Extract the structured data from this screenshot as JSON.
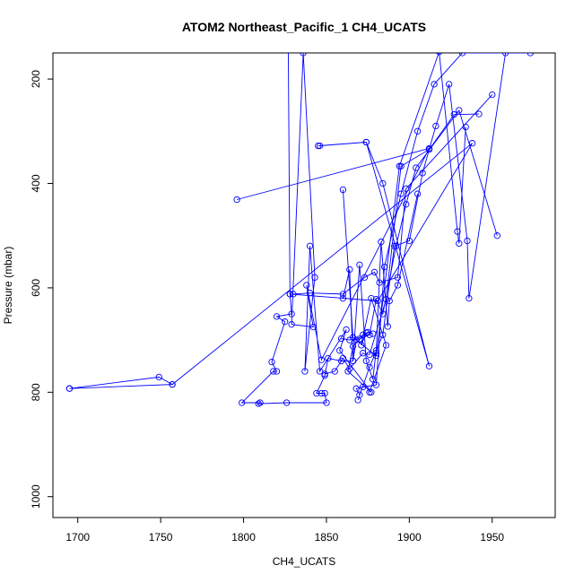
{
  "chart_data": {
    "type": "line",
    "title": "ATOM2 Northeast_Pacific_1 CH4_UCATS",
    "xlabel": "CH4_UCATS",
    "ylabel": "Pressure (mbar)",
    "xlim": [
      1685,
      1988
    ],
    "ylim": [
      1040,
      150
    ],
    "y_reversed": true,
    "x_ticks": [
      1700,
      1750,
      1800,
      1850,
      1900,
      1950
    ],
    "y_ticks": [
      200,
      400,
      600,
      800,
      1000
    ],
    "grid": false,
    "legend": "none",
    "marker": "open-circle",
    "line_color": "#0000ff",
    "series": [
      {
        "x": [
          1695,
          1749,
          1757,
          1695
        ],
        "y": [
          793,
          771,
          785,
          793
        ]
      },
      {
        "x": [
          1757,
          1938,
          1881,
          1828,
          1829,
          1820,
          1825,
          1817,
          1820,
          1818,
          1799,
          1810,
          1809,
          1826,
          1850,
          1849,
          1847,
          1844,
          1849,
          1851,
          1859,
          1866,
          1868,
          1872,
          1875,
          1878
        ],
        "y": [
          785,
          323,
          625,
          612,
          650,
          655,
          665,
          742,
          760,
          760,
          820,
          820,
          822,
          820,
          820,
          802,
          802,
          802,
          768,
          735,
          740,
          740,
          700,
          690,
          685,
          688
        ]
      },
      {
        "x": [
          1796,
          1912,
          1847,
          1838,
          1842,
          1829,
          1836,
          1843,
          1837,
          1840,
          1846,
          1862,
          1858,
          1877,
          1863,
          1866,
          1874,
          1871,
          1877,
          1886,
          1876
        ],
        "y": [
          431,
          333,
          738,
          595,
          675,
          670,
          150,
          580,
          760,
          520,
          760,
          680,
          720,
          800,
          760,
          712,
          686,
          710,
          620,
          710,
          800
        ]
      },
      {
        "x": [
          1827,
          1828,
          1830,
          1840,
          1860,
          1873,
          1879,
          1882,
          1893,
          1898,
          1950
        ],
        "y": [
          135,
          612,
          612,
          610,
          612,
          580,
          570,
          590,
          580,
          410,
          230
        ]
      },
      {
        "x": [
          1845,
          1874,
          1912,
          1884,
          1874,
          1846
        ],
        "y": [
          328,
          321,
          750,
          400,
          321,
          328
        ]
      },
      {
        "x": [
          1860,
          1866,
          1880,
          1894,
          1918,
          1929,
          1930,
          1934
        ],
        "y": [
          412,
          695,
          730,
          367,
          148,
          492,
          515,
          292
        ]
      },
      {
        "x": [
          1860,
          1864,
          1866,
          1870,
          1874,
          1878,
          1880,
          1880,
          1883,
          1887,
          1888,
          1893,
          1905
        ],
        "y": [
          620,
          565,
          740,
          556,
          740,
          775,
          720,
          725,
          512,
          674,
          625,
          595,
          420
        ]
      },
      {
        "x": [
          1859,
          1864,
          1870,
          1876,
          1880,
          1884,
          1892,
          1898,
          1904,
          1930,
          1953
        ],
        "y": [
          697,
          700,
          698,
          690,
          622,
          650,
          520,
          440,
          370,
          260,
          500
        ]
      },
      {
        "x": [
          1849,
          1855,
          1860,
          1864,
          1872,
          1876,
          1886,
          1895,
          1912,
          1927,
          1942
        ],
        "y": [
          765,
          760,
          735,
          755,
          725,
          728,
          622,
          367,
          335,
          268,
          267
        ]
      },
      {
        "x": [
          1869,
          1876,
          1884,
          1891,
          1900,
          1908,
          1916,
          1924,
          1935,
          1936,
          1958
        ],
        "y": [
          815,
          752,
          690,
          520,
          510,
          380,
          290,
          210,
          510,
          620,
          150
        ]
      },
      {
        "x": [
          1870,
          1868,
          1872,
          1880,
          1885,
          1895,
          1905,
          1915,
          1932,
          1973
        ],
        "y": [
          805,
          793,
          790,
          786,
          560,
          420,
          300,
          210,
          150,
          150
        ]
      }
    ]
  }
}
